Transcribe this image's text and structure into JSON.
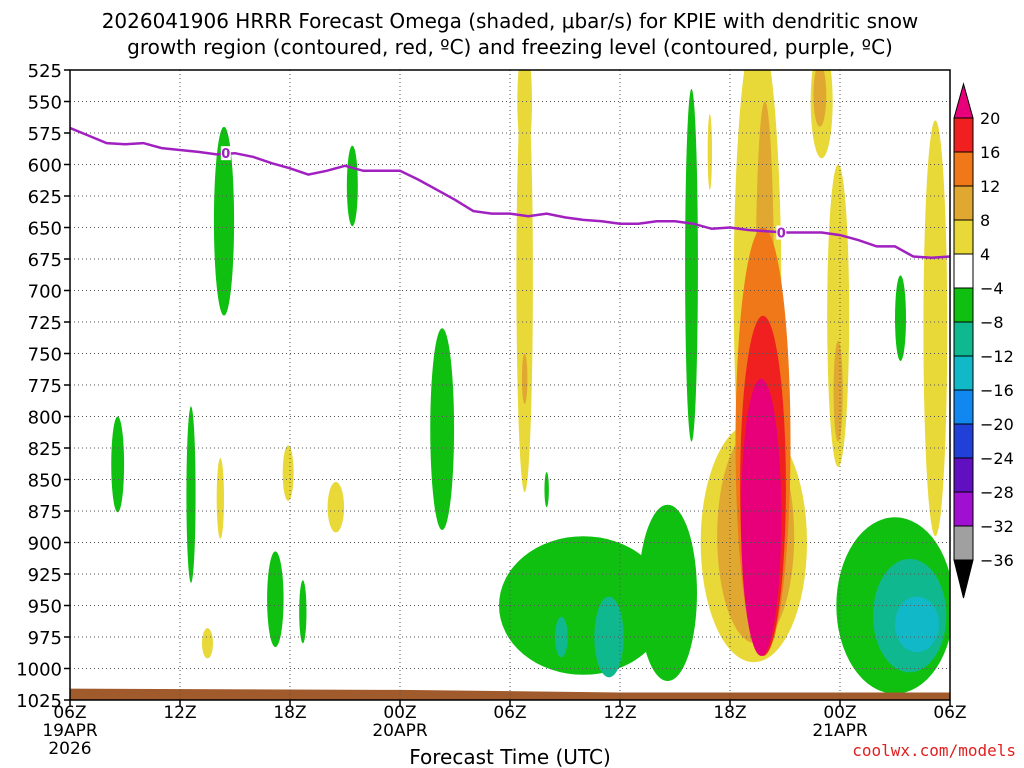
{
  "chart_data": {
    "type": "heatmap",
    "title_line1": "2026041906 HRRR Forecast Omega (shaded, μbar/s) for KPIE with dendritic snow",
    "title_line2": "growth region (contoured, red, ºC) and freezing level (contoured, purple, ºC)",
    "xlabel": "Forecast Time (UTC)",
    "x_range_hours": [
      0,
      48
    ],
    "x_ticks": [
      {
        "hour": 0,
        "label": "06Z",
        "date": "19APR",
        "year": "2026"
      },
      {
        "hour": 6,
        "label": "12Z"
      },
      {
        "hour": 12,
        "label": "18Z"
      },
      {
        "hour": 18,
        "label": "00Z",
        "date": "20APR"
      },
      {
        "hour": 24,
        "label": "06Z"
      },
      {
        "hour": 30,
        "label": "12Z"
      },
      {
        "hour": 36,
        "label": "18Z"
      },
      {
        "hour": 42,
        "label": "00Z",
        "date": "21APR"
      },
      {
        "hour": 48,
        "label": "06Z"
      }
    ],
    "y_range_hpa": [
      525,
      1025
    ],
    "y_ticks": [
      "525",
      "550",
      "575",
      "600",
      "625",
      "650",
      "675",
      "700",
      "725",
      "750",
      "775",
      "800",
      "825",
      "850",
      "875",
      "900",
      "925",
      "950",
      "975",
      "1000",
      "1025"
    ],
    "colorbar": {
      "labels": [
        "20",
        "16",
        "12",
        "8",
        "4",
        "−4",
        "−8",
        "−12",
        "−16",
        "−20",
        "−24",
        "−28",
        "−32",
        "−36"
      ],
      "colors": [
        "#e8007a",
        "#f02020",
        "#f07818",
        "#e0a830",
        "#e8d838",
        "#ffffff",
        "#10c010",
        "#10b890",
        "#10b8c8",
        "#1088f0",
        "#2040d8",
        "#6010c0",
        "#a010d0",
        "#a0a0a0",
        "#000000"
      ]
    },
    "freezing_level": {
      "label": "0",
      "color": "#a020c0",
      "points": [
        [
          0,
          571
        ],
        [
          1,
          577
        ],
        [
          2,
          583
        ],
        [
          3,
          584
        ],
        [
          4,
          583
        ],
        [
          5,
          587
        ],
        [
          7,
          590
        ],
        [
          8,
          592
        ],
        [
          9,
          591
        ],
        [
          10,
          594
        ],
        [
          11,
          599
        ],
        [
          12,
          603
        ],
        [
          13,
          608
        ],
        [
          14,
          605
        ],
        [
          15,
          601
        ],
        [
          16,
          605
        ],
        [
          17,
          605
        ],
        [
          18,
          605
        ],
        [
          19,
          612
        ],
        [
          20,
          620
        ],
        [
          21,
          628
        ],
        [
          22,
          637
        ],
        [
          23,
          639
        ],
        [
          24,
          639
        ],
        [
          25,
          641
        ],
        [
          26,
          639
        ],
        [
          27,
          642
        ],
        [
          28,
          644
        ],
        [
          29,
          645
        ],
        [
          30,
          647
        ],
        [
          31,
          647
        ],
        [
          32,
          645
        ],
        [
          33,
          645
        ],
        [
          34,
          647
        ],
        [
          35,
          651
        ],
        [
          36,
          650
        ],
        [
          37,
          652
        ],
        [
          38,
          653
        ],
        [
          39,
          654
        ],
        [
          40,
          654
        ],
        [
          41,
          654
        ],
        [
          42,
          656
        ],
        [
          43,
          660
        ],
        [
          44,
          665
        ],
        [
          45,
          665
        ],
        [
          46,
          673
        ],
        [
          47,
          674
        ],
        [
          48,
          673
        ]
      ],
      "label_positions": [
        [
          8.5,
          591
        ],
        [
          38.8,
          654
        ]
      ]
    },
    "shaded_regions": [
      {
        "name": "green-15z-upper",
        "value": -6,
        "cx": 8.4,
        "cy": 645,
        "rx": 0.55,
        "ry": 75
      },
      {
        "name": "green-00z-upper",
        "value": -6,
        "cx": 15.4,
        "cy": 617,
        "rx": 0.3,
        "ry": 32
      },
      {
        "name": "green-10z",
        "value": -6,
        "cx": 2.6,
        "cy": 838,
        "rx": 0.35,
        "ry": 38
      },
      {
        "name": "green-12z",
        "value": -6,
        "cx": 6.6,
        "cy": 862,
        "rx": 0.25,
        "ry": 70
      },
      {
        "name": "green-16z",
        "value": -6,
        "cx": 11.2,
        "cy": 945,
        "rx": 0.45,
        "ry": 38
      },
      {
        "name": "green-18z",
        "value": -6,
        "cx": 12.7,
        "cy": 955,
        "rx": 0.2,
        "ry": 25
      },
      {
        "name": "green-02z",
        "value": -6,
        "cx": 20.3,
        "cy": 810,
        "rx": 0.65,
        "ry": 80
      },
      {
        "name": "green-11z-stripe",
        "value": -6,
        "cx": 26.0,
        "cy": 858,
        "rx": 0.12,
        "ry": 14
      },
      {
        "name": "green-15z-stripe",
        "value": -6,
        "cx": 33.9,
        "cy": 680,
        "rx": 0.35,
        "ry": 140
      },
      {
        "name": "green-03z-small",
        "value": -6,
        "cx": 45.3,
        "cy": 722,
        "rx": 0.3,
        "ry": 34
      },
      {
        "name": "green-lower-blob1",
        "value": -6,
        "cx": 28.0,
        "cy": 950,
        "rx": 4.6,
        "ry": 55
      },
      {
        "name": "green-lower-blob2",
        "value": -6,
        "cx": 32.6,
        "cy": 940,
        "rx": 1.6,
        "ry": 70
      },
      {
        "name": "green-lower-blob3",
        "value": -6,
        "cx": 45.0,
        "cy": 950,
        "rx": 3.2,
        "ry": 70
      },
      {
        "name": "teal-lower-1",
        "value": -10,
        "cx": 29.4,
        "cy": 975,
        "rx": 0.8,
        "ry": 32
      },
      {
        "name": "teal-lower-2",
        "value": -10,
        "cx": 26.8,
        "cy": 975,
        "rx": 0.35,
        "ry": 16
      },
      {
        "name": "teal-lower-3",
        "value": -10,
        "cx": 45.8,
        "cy": 958,
        "rx": 2.0,
        "ry": 45
      },
      {
        "name": "cyan-lower",
        "value": -14,
        "cx": 46.2,
        "cy": 965,
        "rx": 1.2,
        "ry": 22
      },
      {
        "name": "yellow-12z-col",
        "value": 5,
        "cx": 24.8,
        "cy": 690,
        "rx": 0.45,
        "ry": 170
      },
      {
        "name": "yellow-12z-top",
        "value": 5,
        "cx": 24.8,
        "cy": 550,
        "rx": 0.4,
        "ry": 45
      },
      {
        "name": "yellow-00z-col",
        "value": 5,
        "cx": 41.9,
        "cy": 720,
        "rx": 0.6,
        "ry": 120
      },
      {
        "name": "yellow-00z-top",
        "value": 5,
        "cx": 41.0,
        "cy": 550,
        "rx": 0.6,
        "ry": 45
      },
      {
        "name": "yellow-05z-col",
        "value": 5,
        "cx": 47.2,
        "cy": 730,
        "rx": 0.65,
        "ry": 165
      },
      {
        "name": "yellow-15z",
        "value": 5,
        "cx": 8.2,
        "cy": 865,
        "rx": 0.2,
        "ry": 32
      },
      {
        "name": "yellow-18z",
        "value": 5,
        "cx": 11.9,
        "cy": 845,
        "rx": 0.3,
        "ry": 22
      },
      {
        "name": "yellow-21z",
        "value": 5,
        "cx": 14.5,
        "cy": 872,
        "rx": 0.45,
        "ry": 20
      },
      {
        "name": "yellow-14z",
        "value": 5,
        "cx": 7.5,
        "cy": 980,
        "rx": 0.3,
        "ry": 12
      },
      {
        "name": "yellow-17z-small",
        "value": 5,
        "cx": 34.9,
        "cy": 590,
        "rx": 0.12,
        "ry": 30
      },
      {
        "name": "yellow-20z-col",
        "value": 5,
        "cx": 37.5,
        "cy": 700,
        "rx": 1.3,
        "ry": 210
      },
      {
        "name": "yellow-20z-lower",
        "value": 5,
        "cx": 37.3,
        "cy": 900,
        "rx": 2.9,
        "ry": 95
      },
      {
        "name": "gold-20z-col",
        "value": 10,
        "cx": 37.9,
        "cy": 700,
        "rx": 0.5,
        "ry": 150
      },
      {
        "name": "gold-20z-lower",
        "value": 10,
        "cx": 37.4,
        "cy": 895,
        "rx": 2.1,
        "ry": 85
      },
      {
        "name": "gold-00z-mid",
        "value": 10,
        "cx": 41.9,
        "cy": 780,
        "rx": 0.25,
        "ry": 40
      },
      {
        "name": "gold-12z-small",
        "value": 10,
        "cx": 24.8,
        "cy": 770,
        "rx": 0.15,
        "ry": 20
      },
      {
        "name": "gold-00z-top",
        "value": 10,
        "cx": 40.9,
        "cy": 545,
        "rx": 0.35,
        "ry": 25
      },
      {
        "name": "orange-20z",
        "value": 14,
        "cx": 37.8,
        "cy": 820,
        "rx": 1.5,
        "ry": 170
      },
      {
        "name": "red-20z",
        "value": 18,
        "cx": 37.8,
        "cy": 855,
        "rx": 1.25,
        "ry": 135
      },
      {
        "name": "magenta-20z",
        "value": 22,
        "cx": 37.7,
        "cy": 880,
        "rx": 1.1,
        "ry": 110
      }
    ],
    "terrain_color": "#a05a2c",
    "watermark": "coolwx.com/models"
  }
}
